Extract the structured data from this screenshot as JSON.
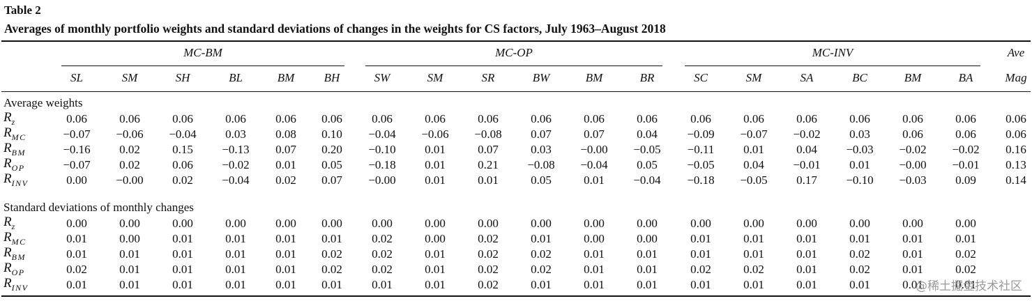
{
  "caption": {
    "label": "Table 2",
    "title": "Averages of monthly portfolio weights and standard deviations of changes in the weights for CS factors, July 1963–August 2018"
  },
  "groups": [
    "MC-BM",
    "MC-OP",
    "MC-INV"
  ],
  "ave_mag_header": [
    "Ave",
    "Mag"
  ],
  "columns": [
    "SL",
    "SM",
    "SH",
    "BL",
    "BM",
    "BH",
    "SW",
    "SM",
    "SR",
    "BW",
    "BM",
    "BR",
    "SC",
    "SM",
    "SA",
    "BC",
    "BM",
    "BA"
  ],
  "sections": [
    {
      "title": "Average weights",
      "rows": [
        {
          "var": "R",
          "sub": "z",
          "values": [
            "0.06",
            "0.06",
            "0.06",
            "0.06",
            "0.06",
            "0.06",
            "0.06",
            "0.06",
            "0.06",
            "0.06",
            "0.06",
            "0.06",
            "0.06",
            "0.06",
            "0.06",
            "0.06",
            "0.06",
            "0.06"
          ],
          "ave_mag": "0.06"
        },
        {
          "var": "R",
          "sub": "MC",
          "values": [
            "−0.07",
            "−0.06",
            "−0.04",
            "0.03",
            "0.08",
            "0.10",
            "−0.04",
            "−0.06",
            "−0.08",
            "0.07",
            "0.07",
            "0.04",
            "−0.09",
            "−0.07",
            "−0.02",
            "0.03",
            "0.06",
            "0.06"
          ],
          "ave_mag": "0.06"
        },
        {
          "var": "R",
          "sub": "BM",
          "values": [
            "−0.16",
            "0.02",
            "0.15",
            "−0.13",
            "0.07",
            "0.20",
            "−0.10",
            "0.01",
            "0.07",
            "0.03",
            "−0.00",
            "−0.05",
            "−0.11",
            "0.01",
            "0.04",
            "−0.03",
            "−0.02",
            "−0.02"
          ],
          "ave_mag": "0.16"
        },
        {
          "var": "R",
          "sub": "OP",
          "values": [
            "−0.07",
            "0.02",
            "0.06",
            "−0.02",
            "0.01",
            "0.05",
            "−0.18",
            "0.01",
            "0.21",
            "−0.08",
            "−0.04",
            "0.05",
            "−0.05",
            "0.04",
            "−0.01",
            "0.01",
            "−0.00",
            "−0.01"
          ],
          "ave_mag": "0.13"
        },
        {
          "var": "R",
          "sub": "INV",
          "values": [
            "0.00",
            "−0.00",
            "0.02",
            "−0.04",
            "0.02",
            "0.07",
            "−0.00",
            "0.01",
            "0.01",
            "0.05",
            "0.01",
            "−0.04",
            "−0.18",
            "−0.05",
            "0.17",
            "−0.10",
            "−0.03",
            "0.09"
          ],
          "ave_mag": "0.14"
        }
      ]
    },
    {
      "title": "Standard deviations of monthly changes",
      "rows": [
        {
          "var": "R",
          "sub": "z",
          "values": [
            "0.00",
            "0.00",
            "0.00",
            "0.00",
            "0.00",
            "0.00",
            "0.00",
            "0.00",
            "0.00",
            "0.00",
            "0.00",
            "0.00",
            "0.00",
            "0.00",
            "0.00",
            "0.00",
            "0.00",
            "0.00"
          ],
          "ave_mag": ""
        },
        {
          "var": "R",
          "sub": "MC",
          "values": [
            "0.01",
            "0.00",
            "0.01",
            "0.01",
            "0.01",
            "0.01",
            "0.02",
            "0.00",
            "0.02",
            "0.01",
            "0.00",
            "0.00",
            "0.01",
            "0.01",
            "0.01",
            "0.01",
            "0.01",
            "0.01"
          ],
          "ave_mag": ""
        },
        {
          "var": "R",
          "sub": "BM",
          "values": [
            "0.01",
            "0.01",
            "0.01",
            "0.01",
            "0.01",
            "0.02",
            "0.02",
            "0.01",
            "0.02",
            "0.02",
            "0.01",
            "0.01",
            "0.01",
            "0.01",
            "0.01",
            "0.02",
            "0.01",
            "0.02"
          ],
          "ave_mag": ""
        },
        {
          "var": "R",
          "sub": "OP",
          "values": [
            "0.02",
            "0.01",
            "0.01",
            "0.01",
            "0.01",
            "0.02",
            "0.02",
            "0.01",
            "0.02",
            "0.02",
            "0.01",
            "0.01",
            "0.02",
            "0.02",
            "0.01",
            "0.02",
            "0.01",
            "0.02"
          ],
          "ave_mag": ""
        },
        {
          "var": "R",
          "sub": "INV",
          "values": [
            "0.01",
            "0.01",
            "0.01",
            "0.01",
            "0.01",
            "0.01",
            "0.01",
            "0.01",
            "0.02",
            "0.01",
            "0.01",
            "0.01",
            "0.01",
            "0.01",
            "0.01",
            "0.01",
            "0.01",
            "0.01"
          ],
          "ave_mag": ""
        }
      ]
    }
  ],
  "watermark": "@稀土掘金技术社区"
}
